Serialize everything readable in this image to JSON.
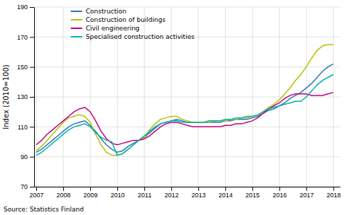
{
  "chart_data": {
    "type": "line",
    "ylabel": "Index (2010=100)",
    "source": "Source: Statistics Finland",
    "xlim": [
      2006.92,
      2018.25
    ],
    "xticks": [
      2007,
      2008,
      2009,
      2010,
      2011,
      2012,
      2013,
      2014,
      2015,
      2016,
      2017,
      2018
    ],
    "ylim": [
      70,
      190
    ],
    "yticks": [
      70,
      90,
      110,
      130,
      150,
      170,
      190
    ],
    "grid": true,
    "legend": "upper-left",
    "x": [
      2007.0,
      2007.2,
      2007.4,
      2007.6,
      2007.8,
      2008.0,
      2008.2,
      2008.4,
      2008.6,
      2008.8,
      2009.0,
      2009.2,
      2009.4,
      2009.6,
      2009.8,
      2010.0,
      2010.2,
      2010.4,
      2010.6,
      2010.8,
      2011.0,
      2011.2,
      2011.4,
      2011.6,
      2011.8,
      2012.0,
      2012.2,
      2012.4,
      2012.6,
      2012.8,
      2013.0,
      2013.2,
      2013.4,
      2013.6,
      2013.8,
      2014.0,
      2014.2,
      2014.4,
      2014.6,
      2014.8,
      2015.0,
      2015.2,
      2015.4,
      2015.6,
      2015.8,
      2016.0,
      2016.2,
      2016.4,
      2016.6,
      2016.8,
      2017.0,
      2017.2,
      2017.4,
      2017.6,
      2017.8,
      2018.0
    ],
    "series": [
      {
        "name": "Construction",
        "color": "#2e75b6",
        "values": [
          93,
          95,
          98,
          101,
          104,
          107,
          110,
          112,
          113,
          114,
          111,
          107,
          102,
          98,
          95,
          93,
          94,
          97,
          99,
          101,
          103,
          106,
          109,
          112,
          113,
          114,
          115,
          114,
          113,
          113,
          113,
          113,
          113,
          113,
          113,
          114,
          114,
          115,
          115,
          115,
          116,
          117,
          119,
          121,
          122,
          124,
          126,
          129,
          131,
          133,
          136,
          139,
          143,
          147,
          150,
          152
        ]
      },
      {
        "name": "Construction of buildings",
        "color": "#b8c000",
        "values": [
          94,
          97,
          101,
          105,
          109,
          113,
          116,
          117,
          118,
          117,
          113,
          105,
          98,
          93,
          91,
          91,
          92,
          95,
          98,
          101,
          103,
          108,
          112,
          115,
          116,
          117,
          117,
          115,
          114,
          113,
          113,
          113,
          113,
          114,
          114,
          114,
          115,
          115,
          116,
          116,
          117,
          118,
          120,
          123,
          125,
          128,
          132,
          136,
          141,
          145,
          150,
          156,
          161,
          164,
          165,
          165
        ]
      },
      {
        "name": "Civil engineering",
        "color": "#c0007a",
        "values": [
          98,
          101,
          105,
          108,
          111,
          114,
          117,
          120,
          122,
          123,
          120,
          114,
          107,
          102,
          99,
          98,
          99,
          100,
          101,
          101,
          102,
          104,
          107,
          110,
          112,
          113,
          113,
          112,
          111,
          110,
          110,
          110,
          110,
          110,
          110,
          111,
          111,
          112,
          112,
          113,
          114,
          116,
          119,
          122,
          124,
          126,
          129,
          131,
          132,
          132,
          132,
          131,
          131,
          131,
          132,
          133
        ]
      },
      {
        "name": "Specialised construction activities",
        "color": "#00b0b0",
        "values": [
          91,
          93,
          96,
          99,
          102,
          105,
          108,
          110,
          111,
          112,
          110,
          106,
          103,
          101,
          100,
          91,
          92,
          95,
          98,
          101,
          104,
          107,
          110,
          112,
          113,
          114,
          114,
          113,
          113,
          113,
          113,
          113,
          114,
          114,
          114,
          115,
          115,
          116,
          116,
          117,
          117,
          118,
          120,
          122,
          123,
          124,
          125,
          126,
          127,
          127,
          130,
          134,
          138,
          141,
          143,
          145
        ]
      }
    ]
  }
}
